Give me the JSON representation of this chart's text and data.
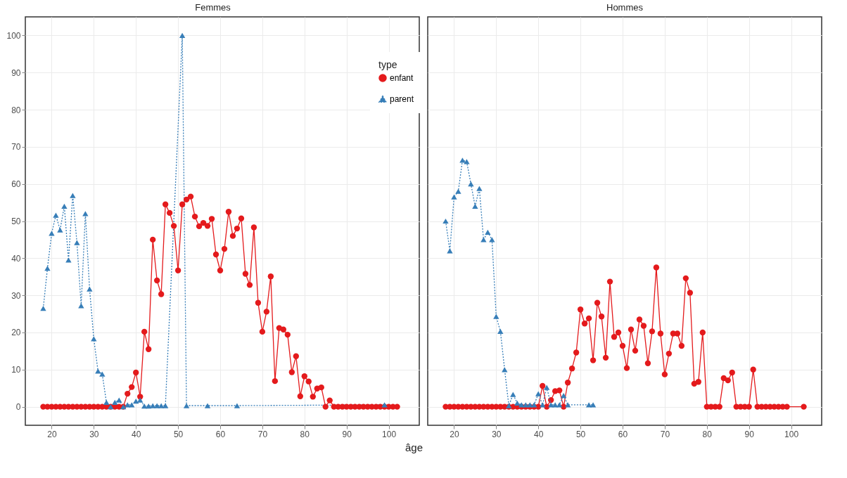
{
  "chart_data": [
    {
      "type": "line",
      "title": "Femmes",
      "xlabel": "âge",
      "legend_title": "type",
      "legend": "top right",
      "grid": true,
      "xlim": [
        13.75,
        107.25
      ],
      "ylim": [
        -5,
        105
      ],
      "xticks": [
        20,
        30,
        40,
        50,
        60,
        70,
        80,
        90,
        100
      ],
      "yticks": [
        0,
        10,
        20,
        30,
        40,
        50,
        60,
        70,
        80,
        90,
        100
      ],
      "series": [
        {
          "name": "enfant",
          "color": "#e41a1c",
          "marker": "circle",
          "line_style": "solid",
          "x": [
            18,
            19,
            20,
            21,
            22,
            23,
            24,
            25,
            26,
            27,
            28,
            29,
            30,
            31,
            32,
            33,
            34,
            35,
            36,
            37,
            38,
            39,
            40,
            41,
            42,
            43,
            44,
            45,
            46,
            47,
            48,
            49,
            50,
            51,
            52,
            53,
            54,
            55,
            56,
            57,
            58,
            59,
            60,
            61,
            62,
            63,
            64,
            65,
            66,
            67,
            68,
            69,
            70,
            71,
            72,
            73,
            74,
            75,
            76,
            77,
            78,
            79,
            80,
            81,
            82,
            83,
            84,
            85,
            86,
            87,
            88,
            89,
            90,
            91,
            92,
            93,
            94,
            95,
            96,
            97,
            98,
            99,
            100,
            101,
            102
          ],
          "values": [
            0,
            0,
            0,
            0,
            0,
            0,
            0,
            0,
            0,
            0,
            0,
            0,
            0,
            0,
            0,
            0,
            0,
            0,
            0,
            0,
            3.5,
            5.3,
            9.2,
            2.7,
            20.2,
            15.5,
            45,
            34,
            30.3,
            54.5,
            52.2,
            48.7,
            36.7,
            54.5,
            55.8,
            56.6,
            51.2,
            48.6,
            49.5,
            48.7,
            50.6,
            41,
            36.7,
            42.5,
            52.5,
            46,
            48,
            50.7,
            35.8,
            32.8,
            48.3,
            28,
            20.2,
            25.6,
            35.1,
            6.9,
            21.2,
            20.8,
            19.4,
            9.3,
            13.6,
            2.8,
            8.2,
            6.8,
            2.7,
            4.9,
            5.2,
            0,
            1.7,
            0,
            0,
            0,
            0,
            0,
            0,
            0,
            0,
            0,
            0,
            0,
            0,
            0,
            0,
            0,
            0
          ]
        },
        {
          "name": "parent",
          "color": "#377eb8",
          "marker": "triangle",
          "line_style": "dotted",
          "x": [
            18,
            19,
            20,
            21,
            22,
            23,
            24,
            25,
            26,
            27,
            28,
            29,
            30,
            31,
            32,
            33,
            34,
            35,
            36,
            37,
            38,
            39,
            40,
            41,
            42,
            43,
            44,
            45,
            46,
            47,
            51,
            52,
            57,
            64,
            99
          ],
          "values": [
            26.5,
            37.3,
            46.7,
            51.6,
            47.6,
            54,
            39.5,
            56.9,
            44.2,
            27.2,
            52,
            31.7,
            18.3,
            9.6,
            8.8,
            1.2,
            0,
            1.2,
            1.8,
            0,
            0.5,
            0.5,
            1.5,
            1.8,
            0.2,
            0.2,
            0.3,
            0.3,
            0.3,
            0.3,
            100,
            0.3,
            0.3,
            0.3,
            0.5
          ]
        }
      ]
    },
    {
      "type": "line",
      "title": "Hommes",
      "grid": true,
      "tick_labels": "x",
      "xlim": [
        13.75,
        107.25
      ],
      "ylim": [
        -5,
        105
      ],
      "xticks": [
        20,
        30,
        40,
        50,
        60,
        70,
        80,
        90,
        100
      ],
      "yticks": [
        0,
        10,
        20,
        30,
        40,
        50,
        60,
        70,
        80,
        90,
        100
      ],
      "series": [
        {
          "name": "enfant",
          "color": "#e41a1c",
          "marker": "circle",
          "line_style": "solid",
          "x": [
            18,
            19,
            20,
            21,
            22,
            23,
            24,
            25,
            26,
            27,
            28,
            29,
            30,
            31,
            32,
            33,
            34,
            35,
            36,
            37,
            38,
            39,
            40,
            41,
            42,
            43,
            44,
            45,
            46,
            47,
            48,
            49,
            50,
            51,
            52,
            53,
            54,
            55,
            56,
            57,
            58,
            59,
            60,
            61,
            62,
            63,
            64,
            65,
            66,
            67,
            68,
            69,
            70,
            71,
            72,
            73,
            74,
            75,
            76,
            77,
            78,
            79,
            80,
            81,
            82,
            83,
            84,
            85,
            86,
            87,
            88,
            89,
            90,
            91,
            92,
            93,
            94,
            95,
            96,
            97,
            98,
            99,
            103
          ],
          "values": [
            0,
            0,
            0,
            0,
            0,
            0,
            0,
            0,
            0,
            0,
            0,
            0,
            0,
            0,
            0,
            0,
            0,
            0,
            0,
            0,
            0,
            0,
            0,
            5.6,
            0,
            1.8,
            4.2,
            4.4,
            0,
            6.5,
            10.3,
            14.6,
            26.2,
            22.4,
            23.8,
            12.5,
            28,
            24.3,
            13.2,
            33.7,
            18.8,
            20,
            16.4,
            10.4,
            20.8,
            15.1,
            23.5,
            21.8,
            11.7,
            20.3,
            37.5,
            19.7,
            8.7,
            14.3,
            19.7,
            19.7,
            16.4,
            34.6,
            30.7,
            6.2,
            6.7,
            20,
            0,
            0,
            0,
            0,
            7.7,
            7.1,
            9.2,
            0,
            0,
            0,
            0,
            10,
            0,
            0,
            0,
            0,
            0,
            0,
            0,
            0,
            0
          ]
        },
        {
          "name": "parent",
          "color": "#377eb8",
          "marker": "triangle",
          "line_style": "dotted",
          "x": [
            18,
            19,
            20,
            21,
            22,
            23,
            24,
            25,
            26,
            27,
            28,
            29,
            30,
            31,
            32,
            33,
            34,
            35,
            36,
            37,
            38,
            39,
            40,
            41,
            42,
            43,
            44,
            45,
            46,
            47,
            52,
            53
          ],
          "values": [
            50,
            42,
            56.5,
            58,
            66.4,
            66,
            60,
            54,
            58.8,
            45,
            47,
            45,
            24.3,
            20.3,
            10,
            0.3,
            3.3,
            1,
            0.5,
            0.5,
            0.5,
            0.5,
            3.5,
            0.5,
            5.2,
            0.5,
            0.5,
            0.5,
            3,
            0.5,
            0.5,
            0.5
          ]
        }
      ]
    }
  ]
}
